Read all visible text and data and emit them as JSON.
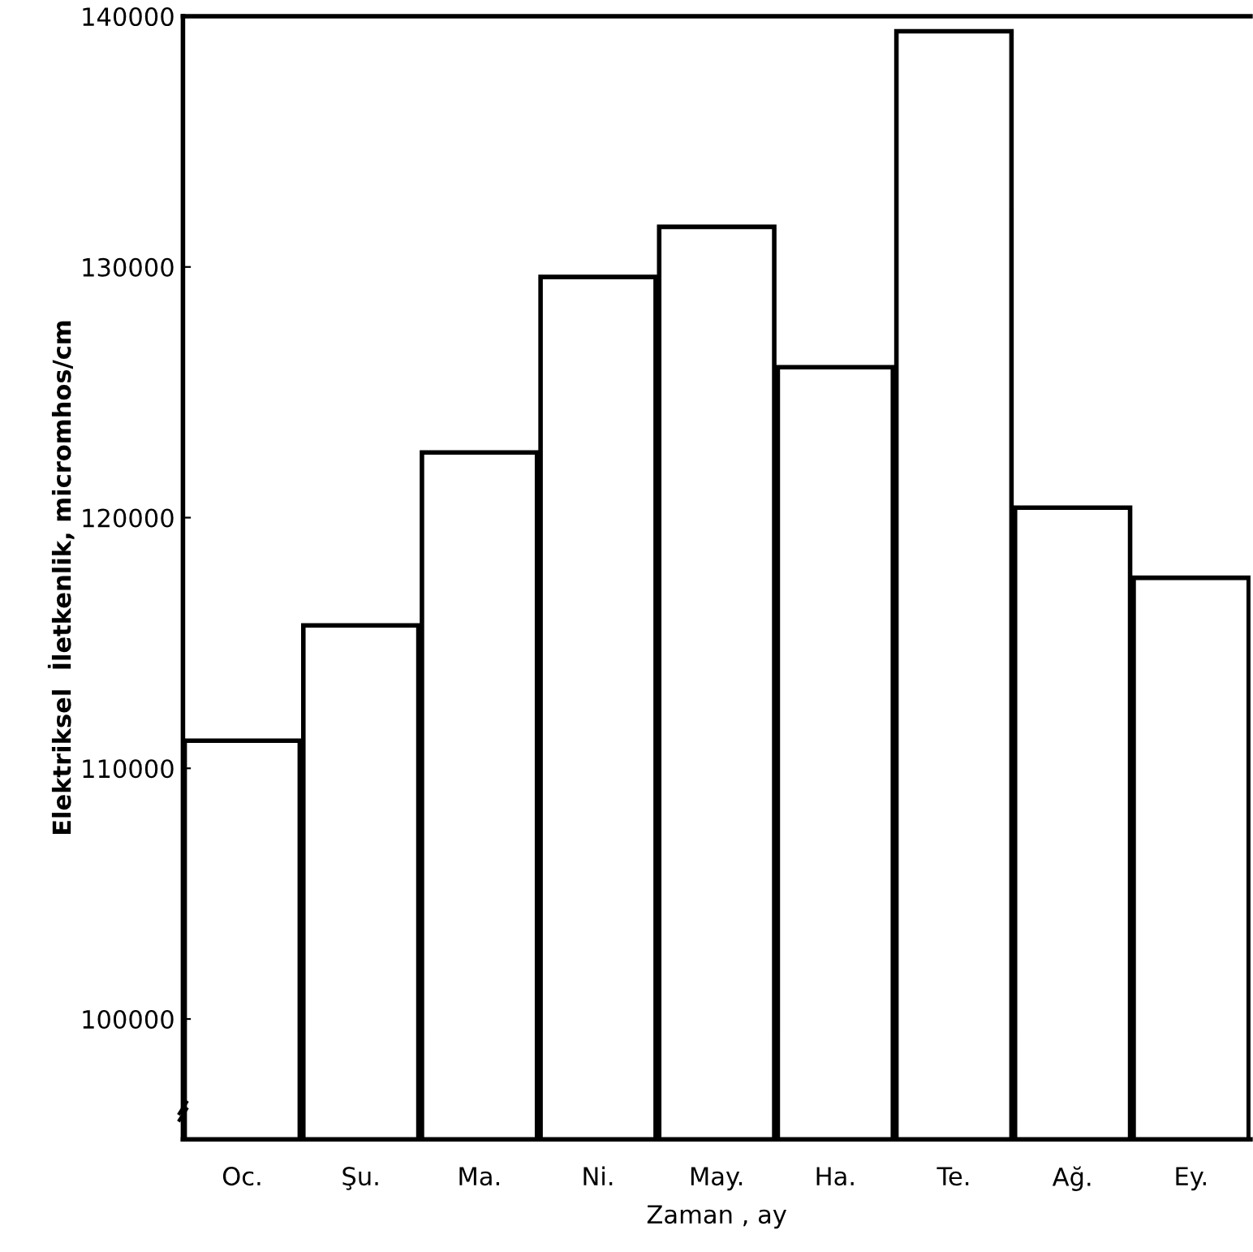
{
  "chart_data": {
    "type": "bar",
    "xlabel": "Zaman , ay",
    "ylabel": "Elektriksel  İletkenlik, micromhos/cm",
    "categories": [
      "Oc.",
      "Şu.",
      "Ma.",
      "Ni.",
      "May.",
      "Ha.",
      "Te.",
      "Ağ.",
      "Ey."
    ],
    "values": [
      111100,
      115700,
      122600,
      129600,
      131600,
      126000,
      139400,
      120400,
      117600
    ],
    "color": "#ffffff",
    "ylim": [
      95200,
      140000
    ],
    "yticks": [
      100000,
      110000,
      120000,
      130000,
      140000
    ],
    "grid": false
  }
}
